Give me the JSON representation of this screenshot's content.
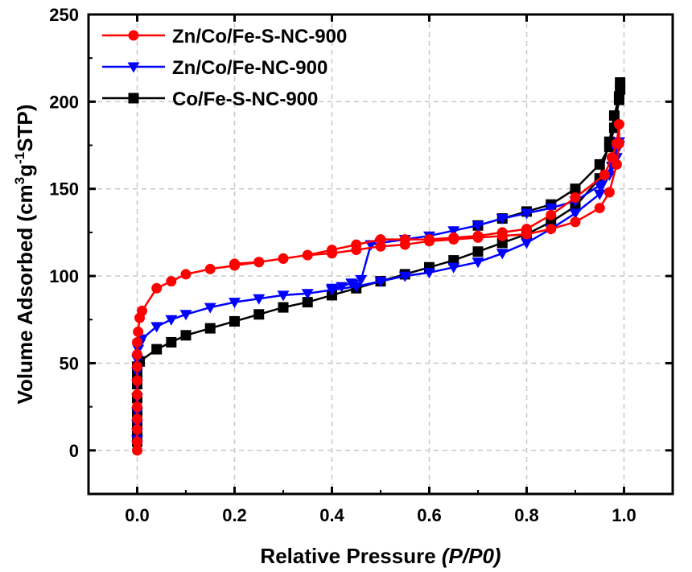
{
  "chart_data": {
    "type": "line",
    "xlabel_main": "Relative Pressure ",
    "xlabel_italic": "(P/P0)",
    "ylabel": {
      "part1": "Volume Adsorbed (cm",
      "sup1": "3",
      "part2": "g",
      "sup2": "-1",
      "part3": "STP)"
    },
    "xlim": [
      -0.1,
      1.1
    ],
    "ylim": [
      -25,
      250
    ],
    "xticks": [
      0.0,
      0.2,
      0.4,
      0.6,
      0.8,
      1.0
    ],
    "xtick_labels": [
      "0.0",
      "0.2",
      "0.4",
      "0.6",
      "0.8",
      "1.0"
    ],
    "yticks": [
      0,
      50,
      100,
      150,
      200,
      250
    ],
    "ytick_labels": [
      "0",
      "50",
      "100",
      "150",
      "200",
      "250"
    ],
    "grid": true,
    "legend_position": "top-left",
    "series": [
      {
        "name": "Zn/Co/Fe-S-NC-900",
        "color": "#ff0000",
        "marker": "circle",
        "x": [
          0.0,
          0.0,
          0.0,
          0.0,
          0.0,
          0.0,
          0.0,
          0.0,
          0.0,
          0.0,
          0.002,
          0.005,
          0.01,
          0.04,
          0.07,
          0.1,
          0.15,
          0.2,
          0.25,
          0.3,
          0.35,
          0.4,
          0.45,
          0.5,
          0.55,
          0.6,
          0.65,
          0.7,
          0.75,
          0.8,
          0.85,
          0.9,
          0.95,
          0.97,
          0.985,
          0.99,
          0.99,
          0.985,
          0.975,
          0.96,
          0.9,
          0.85,
          0.8,
          0.75,
          0.7,
          0.65,
          0.6,
          0.55,
          0.5,
          0.45,
          0.4,
          0.35,
          0.3,
          0.25,
          0.2
        ],
        "y": [
          0,
          5,
          12,
          18,
          25,
          32,
          40,
          48,
          55,
          62,
          68,
          76,
          80,
          93,
          97,
          101,
          104,
          106,
          108,
          110,
          112,
          113,
          115,
          117,
          118,
          120,
          121,
          122,
          123,
          124,
          127,
          131,
          139,
          148,
          164,
          176,
          187,
          176,
          168,
          158,
          145,
          135,
          127,
          125,
          123,
          122,
          121,
          121,
          121,
          118,
          115,
          112,
          110,
          108,
          107
        ]
      },
      {
        "name": "Zn/Co/Fe-NC-900",
        "color": "#0000ff",
        "marker": "triangle-down",
        "x": [
          0.0,
          0.0,
          0.0,
          0.0,
          0.0,
          0.0,
          0.0,
          0.0,
          0.0,
          0.002,
          0.005,
          0.01,
          0.04,
          0.07,
          0.1,
          0.15,
          0.2,
          0.25,
          0.3,
          0.35,
          0.4,
          0.45,
          0.5,
          0.55,
          0.6,
          0.65,
          0.7,
          0.75,
          0.8,
          0.85,
          0.9,
          0.95,
          0.97,
          0.985,
          0.99,
          0.99,
          0.985,
          0.975,
          0.95,
          0.9,
          0.85,
          0.8,
          0.75,
          0.7,
          0.65,
          0.6,
          0.55,
          0.5,
          0.48,
          0.46,
          0.44,
          0.42,
          0.4
        ],
        "y": [
          3,
          6,
          10,
          15,
          22,
          30,
          38,
          45,
          52,
          58,
          61,
          64,
          71,
          75,
          78,
          82,
          85,
          87,
          89,
          90,
          92,
          94,
          97,
          100,
          102,
          105,
          108,
          113,
          119,
          127,
          136,
          147,
          158,
          168,
          175,
          177,
          172,
          163,
          152,
          143,
          139,
          136,
          133,
          129,
          126,
          123,
          121,
          119,
          118,
          98,
          96,
          94,
          93
        ]
      },
      {
        "name": "Co/Fe-S-NC-900",
        "color": "#000000",
        "marker": "square",
        "x": [
          0.0,
          0.0,
          0.0,
          0.0,
          0.0,
          0.0,
          0.0,
          0.0,
          0.005,
          0.04,
          0.07,
          0.1,
          0.15,
          0.2,
          0.25,
          0.3,
          0.35,
          0.4,
          0.45,
          0.5,
          0.55,
          0.6,
          0.65,
          0.7,
          0.75,
          0.8,
          0.85,
          0.9,
          0.95,
          0.97,
          0.98,
          0.99,
          0.992,
          0.992,
          0.99,
          0.98,
          0.97,
          0.95,
          0.9,
          0.85,
          0.8,
          0.75,
          0.7
        ],
        "y": [
          5,
          10,
          15,
          22,
          30,
          38,
          44,
          48,
          51,
          58,
          62,
          66,
          70,
          74,
          78,
          82,
          85,
          89,
          93,
          97,
          101,
          105,
          109,
          114,
          119,
          124,
          131,
          140,
          156,
          177,
          192,
          203,
          207,
          211,
          201,
          185,
          174,
          164,
          150,
          141,
          137,
          133,
          129
        ]
      }
    ]
  }
}
